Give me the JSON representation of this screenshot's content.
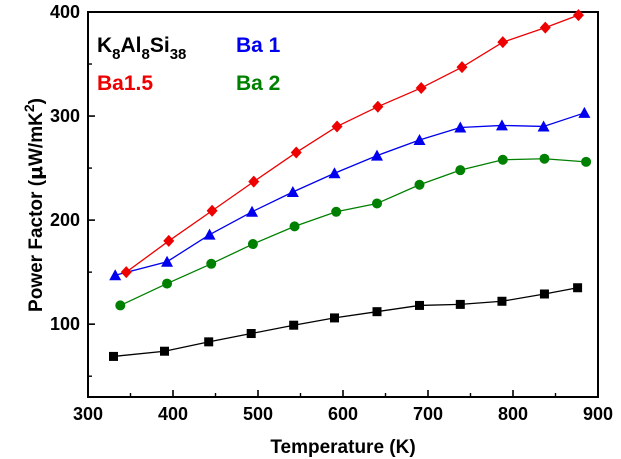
{
  "chart_data": {
    "type": "line",
    "xlabel": "Temperature (K)",
    "ylabel": {
      "main": "Power Factor (",
      "mu": "μ",
      "unit": "W/mK",
      "sup": "2",
      "close": ")"
    },
    "xlim": [
      300,
      900
    ],
    "ylim": [
      30,
      400
    ],
    "xticks": [
      300,
      400,
      500,
      600,
      700,
      800,
      900
    ],
    "yticks": [
      100,
      200,
      300,
      400
    ],
    "grid": false,
    "legend_placement": "top-left",
    "series": [
      {
        "name": "K8Al8Si38",
        "name_parts": [
          {
            "text": "K",
            "sub": false
          },
          {
            "text": "8",
            "sub": true
          },
          {
            "text": "Al",
            "sub": false
          },
          {
            "text": "8",
            "sub": true
          },
          {
            "text": "Si",
            "sub": false
          },
          {
            "text": "38",
            "sub": true
          }
        ],
        "color": "#000000",
        "marker": "square",
        "x": [
          330,
          390,
          442,
          492,
          542,
          590,
          640,
          690,
          738,
          787,
          837,
          876
        ],
        "y": [
          69,
          74,
          83,
          91,
          99,
          106,
          112,
          118,
          119,
          122,
          129,
          135
        ]
      },
      {
        "name": "Ba 1",
        "color": "#0000ee",
        "marker": "triangle",
        "x": [
          332,
          393,
          443,
          493,
          541,
          590,
          640,
          690,
          738,
          787,
          836,
          884
        ],
        "y": [
          147,
          160,
          186,
          208,
          227,
          245,
          262,
          277,
          289,
          291,
          290,
          303
        ]
      },
      {
        "name": "Ba1.5",
        "color": "#ee0000",
        "marker": "diamond",
        "x": [
          345,
          395,
          446,
          495,
          545,
          593,
          641,
          692,
          740,
          788,
          838,
          877
        ],
        "y": [
          150,
          180,
          209,
          237,
          265,
          290,
          309,
          327,
          347,
          371,
          385,
          397
        ]
      },
      {
        "name": "Ba 2",
        "color": "#008000",
        "marker": "circle",
        "x": [
          338,
          393,
          445,
          494,
          543,
          592,
          640,
          690,
          738,
          788,
          837,
          886
        ],
        "y": [
          118,
          139,
          158,
          177,
          194,
          208,
          216,
          234,
          248,
          258,
          259,
          256
        ]
      }
    ]
  }
}
